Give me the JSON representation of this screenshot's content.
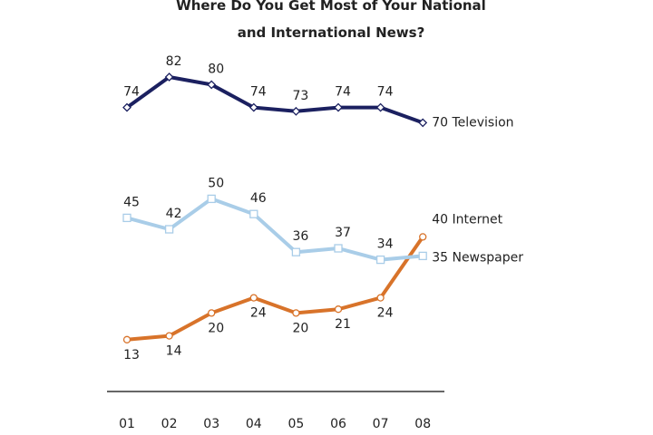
{
  "chart_data": {
    "type": "line",
    "title": "Where Do You Get Most of Your National and International News?",
    "categories": [
      "01",
      "02",
      "03",
      "04",
      "05",
      "06",
      "07",
      "08"
    ],
    "series": [
      {
        "name": "Television",
        "color": "#1b2060",
        "marker": "diamond",
        "values": [
          74,
          82,
          80,
          74,
          73,
          74,
          74,
          70
        ]
      },
      {
        "name": "Internet",
        "color": "#d8732a",
        "marker": "circle",
        "values": [
          13,
          14,
          20,
          24,
          20,
          21,
          24,
          40
        ]
      },
      {
        "name": "Newspaper",
        "color": "#a9cde8",
        "marker": "square",
        "values": [
          45,
          42,
          50,
          46,
          36,
          37,
          34,
          35
        ]
      }
    ]
  }
}
